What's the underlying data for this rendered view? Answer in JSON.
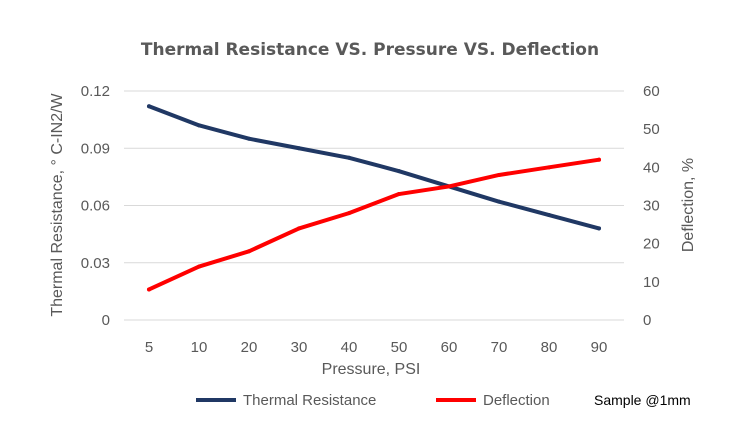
{
  "chart_data": {
    "type": "line",
    "title": "Thermal Resistance VS. Pressure VS. Deflection",
    "xlabel": "Pressure, PSI",
    "ylabel": "Thermal Resistance, ° C-IN2/W",
    "y2label": "Deflection, %",
    "categories": [
      "5",
      "10",
      "20",
      "30",
      "40",
      "50",
      "60",
      "70",
      "80",
      "90"
    ],
    "ylim": [
      0,
      0.12
    ],
    "yticks": [
      "0",
      "0.03",
      "0.06",
      "0.09",
      "0.12"
    ],
    "y2lim": [
      0,
      60
    ],
    "y2ticks": [
      "0",
      "10",
      "20",
      "30",
      "40",
      "50",
      "60"
    ],
    "grid": true,
    "legend_position": "bottom",
    "annotation": "Sample @1mm",
    "series": [
      {
        "name": "Thermal Resistance",
        "axis": "left",
        "color": "#203864",
        "values": [
          0.112,
          0.102,
          0.095,
          0.09,
          0.085,
          0.078,
          0.07,
          0.062,
          0.055,
          0.048
        ]
      },
      {
        "name": "Deflection",
        "axis": "right",
        "color": "#ff0000",
        "values": [
          8,
          14,
          18,
          24,
          28,
          33,
          35,
          38,
          40,
          42
        ]
      }
    ]
  }
}
